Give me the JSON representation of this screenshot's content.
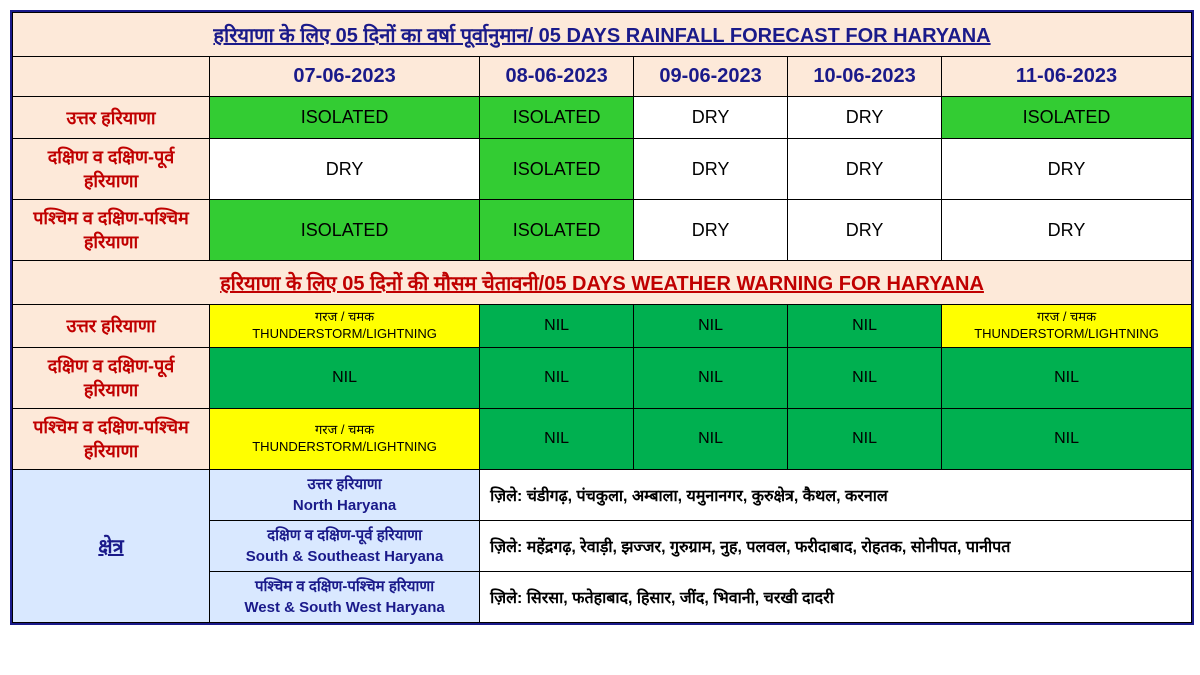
{
  "title": "हरियाणा के लिए 05 दिनों का वर्षा पूर्वानुमान/ 05 DAYS RAINFALL FORECAST FOR HARYANA",
  "dates": [
    "07-06-2023",
    "08-06-2023",
    "09-06-2023",
    "10-06-2023",
    "11-06-2023"
  ],
  "rainfall": {
    "rows": [
      {
        "region": "उत्तर हरियाणा",
        "cells": [
          {
            "text": "ISOLATED",
            "bg": "green"
          },
          {
            "text": "ISOLATED",
            "bg": "green"
          },
          {
            "text": "DRY",
            "bg": "white"
          },
          {
            "text": "DRY",
            "bg": "white"
          },
          {
            "text": "ISOLATED",
            "bg": "green"
          }
        ]
      },
      {
        "region": "दक्षिण व दक्षिण-पूर्व हरियाणा",
        "cells": [
          {
            "text": "DRY",
            "bg": "white"
          },
          {
            "text": "ISOLATED",
            "bg": "green"
          },
          {
            "text": "DRY",
            "bg": "white"
          },
          {
            "text": "DRY",
            "bg": "white"
          },
          {
            "text": "DRY",
            "bg": "white"
          }
        ]
      },
      {
        "region": "पश्चिम व दक्षिण-पश्चिम हरियाणा",
        "cells": [
          {
            "text": "ISOLATED",
            "bg": "green"
          },
          {
            "text": "ISOLATED",
            "bg": "green"
          },
          {
            "text": "DRY",
            "bg": "white"
          },
          {
            "text": "DRY",
            "bg": "white"
          },
          {
            "text": "DRY",
            "bg": "white"
          }
        ]
      }
    ]
  },
  "warning_title": "हरियाणा के लिए 05 दिनों की मौसम चेतावनी/05 DAYS WEATHER WARNING FOR HARYANA",
  "warning": {
    "rows": [
      {
        "region": "उत्तर हरियाणा",
        "cells": [
          {
            "line1": "गरज / चमक",
            "line2": "THUNDERSTORM/LIGHTNING",
            "bg": "yellow"
          },
          {
            "text": "NIL",
            "bg": "green"
          },
          {
            "text": "NIL",
            "bg": "green"
          },
          {
            "text": "NIL",
            "bg": "green"
          },
          {
            "line1": "गरज / चमक",
            "line2": "THUNDERSTORM/LIGHTNING",
            "bg": "yellow"
          }
        ]
      },
      {
        "region": "दक्षिण व दक्षिण-पूर्व हरियाणा",
        "cells": [
          {
            "text": "NIL",
            "bg": "green"
          },
          {
            "text": "NIL",
            "bg": "green"
          },
          {
            "text": "NIL",
            "bg": "green"
          },
          {
            "text": "NIL",
            "bg": "green"
          },
          {
            "text": "NIL",
            "bg": "green"
          }
        ]
      },
      {
        "region": "पश्चिम व दक्षिण-पश्चिम हरियाणा",
        "cells": [
          {
            "line1": "गरज / चमक",
            "line2": "THUNDERSTORM/LIGHTNING",
            "bg": "yellow"
          },
          {
            "text": "NIL",
            "bg": "green"
          },
          {
            "text": "NIL",
            "bg": "green"
          },
          {
            "text": "NIL",
            "bg": "green"
          },
          {
            "text": "NIL",
            "bg": "green"
          }
        ]
      }
    ]
  },
  "area": {
    "label": "क्षेत्र",
    "rows": [
      {
        "name_hi": "उत्तर हरियाणा",
        "name_en": "North Haryana",
        "districts": "ज़िले: चंडीगढ़, पंचकुला, अम्बाला, यमुनानगर, कुरुक्षेत्र, कैथल, करनाल"
      },
      {
        "name_hi": "दक्षिण व दक्षिण-पूर्व हरियाणा",
        "name_en": "South & Southeast Haryana",
        "districts": "ज़िले:  महेंद्रगढ़, रेवाड़ी, झज्जर, गुरुग्राम, नुह, पलवल, फरीदाबाद, रोहतक, सोनीपत, पानीपत"
      },
      {
        "name_hi": "पश्चिम व दक्षिण-पश्चिम हरियाणा",
        "name_en": "West & South West Haryana",
        "districts": "ज़िले: सिरसा, फतेहाबाद, हिसार, जींद, भिवानी, चरखी दादरी"
      }
    ]
  }
}
